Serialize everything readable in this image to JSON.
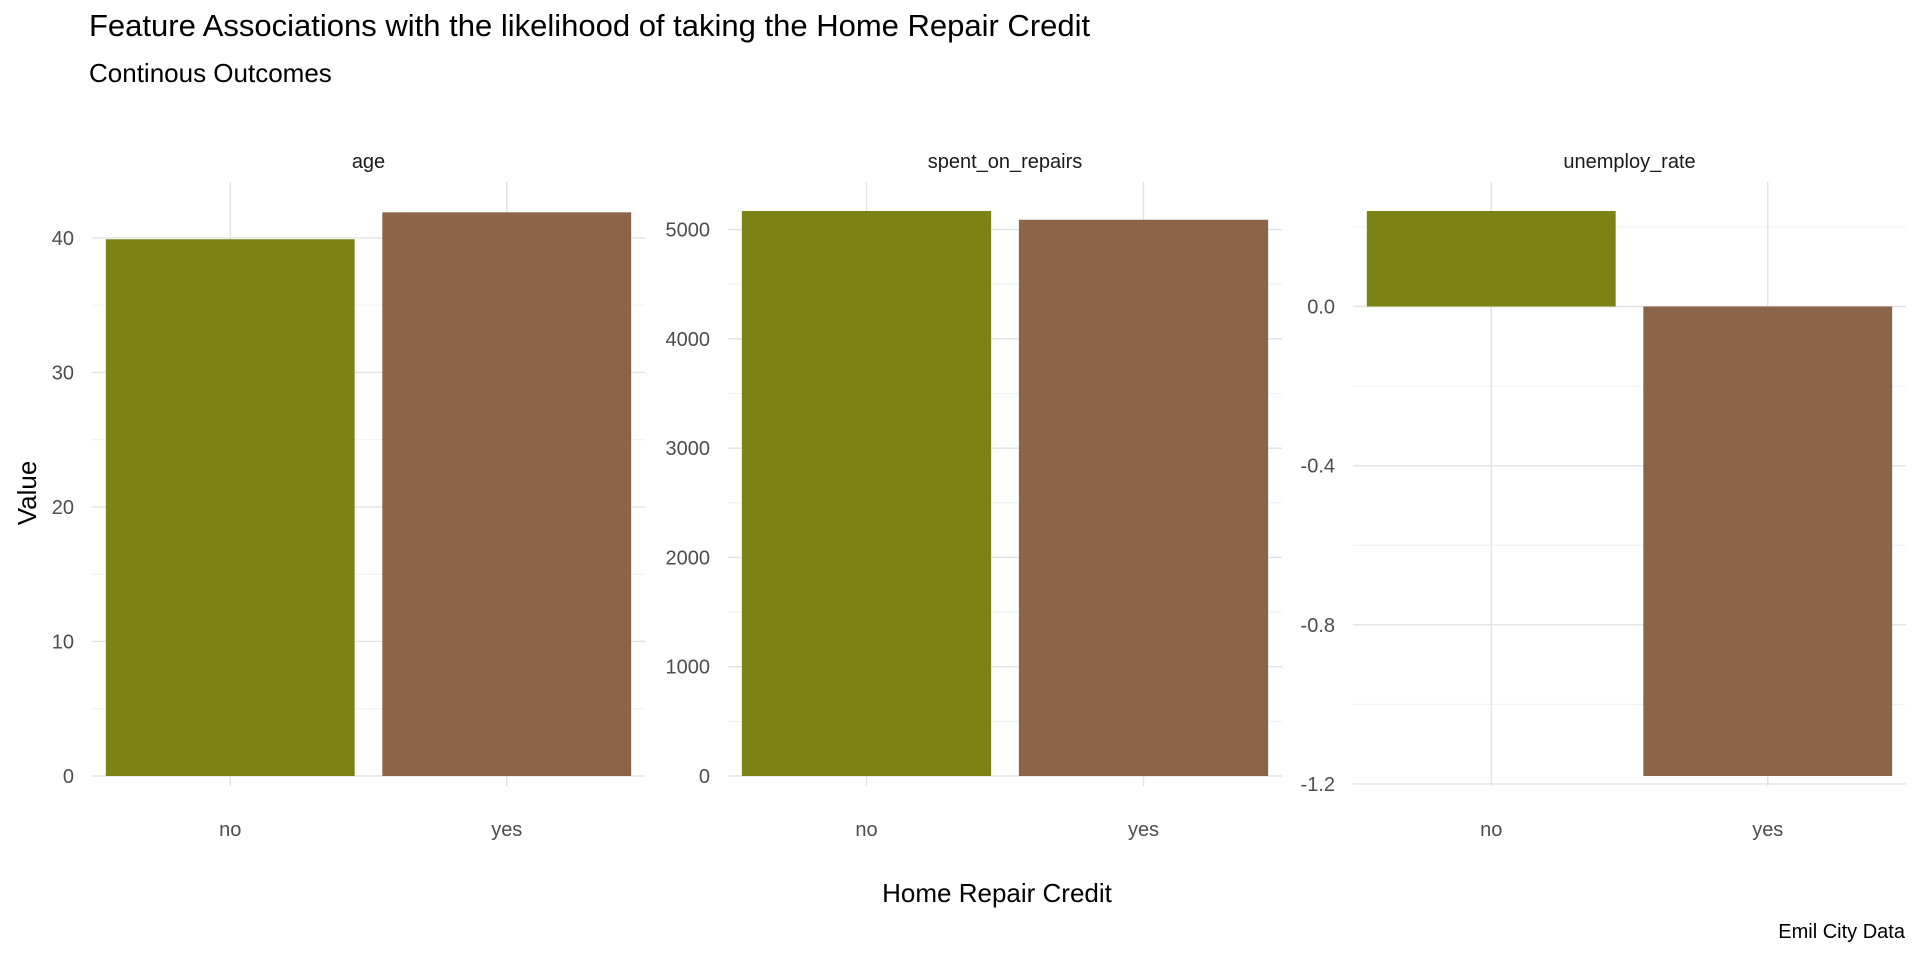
{
  "chart_data": {
    "type": "bar",
    "title": "Feature Associations with the likelihood of taking the Home Repair Credit",
    "subtitle": "Continous Outcomes",
    "xlabel": "Home Repair Credit",
    "ylabel": "Value",
    "caption": "Emil City Data",
    "categories": [
      "no",
      "yes"
    ],
    "colors": {
      "no": "#7a8313",
      "yes": "#8c644a"
    },
    "grid": true,
    "legend": "none",
    "facets": [
      {
        "name": "age",
        "values": [
          39.9,
          41.9
        ],
        "ylim": [
          0,
          42.0
        ],
        "ticks": [
          0,
          10,
          20,
          30,
          40
        ],
        "tick_labels": [
          "0",
          "10",
          "20",
          "30",
          "40"
        ]
      },
      {
        "name": "spent_on_repairs",
        "values": [
          5170,
          5090
        ],
        "ylim": [
          0,
          5170
        ],
        "ticks": [
          0,
          1000,
          2000,
          3000,
          4000,
          5000
        ],
        "tick_labels": [
          "0",
          "1000",
          "2000",
          "3000",
          "4000",
          "5000"
        ]
      },
      {
        "name": "unemploy_rate",
        "values": [
          0.24,
          -1.18
        ],
        "ylim": [
          -1.18,
          0.24
        ],
        "ticks": [
          -1.2,
          -0.8,
          -0.4,
          0.0
        ],
        "tick_labels": [
          "-1.2",
          "-0.8",
          "-0.4",
          "0.0"
        ]
      }
    ]
  }
}
